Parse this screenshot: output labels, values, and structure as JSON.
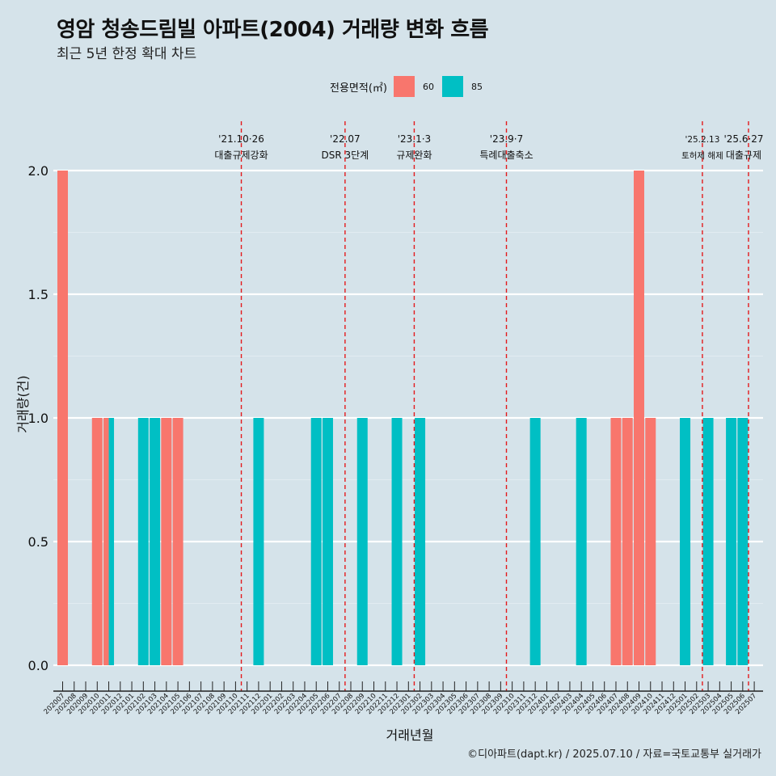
{
  "title": "영암 청송드림빌 아파트(2004) 거래량 변화 흐름",
  "subtitle": "최근 5년 한정 확대 차트",
  "legend": {
    "title": "전용면적(㎡)",
    "items": [
      {
        "label": "60",
        "color": "#f8766d"
      },
      {
        "label": "85",
        "color": "#00bfc4"
      }
    ]
  },
  "caption": "©디아파트(dapt.kr) / 2025.07.10 / 자료=국토교통부 실거래가",
  "chart_data": {
    "type": "bar",
    "xlabel": "거래년월",
    "ylabel": "거래량(건)",
    "ylim": [
      0,
      2
    ],
    "yticks": [
      "0.0",
      "0.5",
      "1.0",
      "1.5",
      "2.0"
    ],
    "grid": true,
    "legend_position": "top",
    "categories": [
      "202007",
      "202008",
      "202009",
      "202010",
      "202011",
      "202012",
      "202101",
      "202102",
      "202103",
      "202104",
      "202105",
      "202106",
      "202107",
      "202108",
      "202109",
      "202110",
      "202111",
      "202112",
      "202201",
      "202202",
      "202203",
      "202204",
      "202205",
      "202206",
      "202207",
      "202208",
      "202209",
      "202210",
      "202211",
      "202212",
      "202301",
      "202302",
      "202303",
      "202304",
      "202305",
      "202306",
      "202307",
      "202308",
      "202309",
      "202310",
      "202311",
      "202312",
      "202401",
      "202402",
      "202403",
      "202404",
      "202405",
      "202406",
      "202407",
      "202408",
      "202409",
      "202410",
      "202411",
      "202412",
      "202501",
      "202502",
      "202503",
      "202504",
      "202505",
      "202506",
      "202507"
    ],
    "bars": [
      {
        "x": "202007",
        "series": "60",
        "value": 2
      },
      {
        "x": "202010",
        "series": "60",
        "value": 1
      },
      {
        "x": "202011",
        "series": "60",
        "value": 1
      },
      {
        "x": "202011",
        "series": "85",
        "value": 1
      },
      {
        "x": "202102",
        "series": "85",
        "value": 1
      },
      {
        "x": "202103",
        "series": "85",
        "value": 1
      },
      {
        "x": "202104",
        "series": "60",
        "value": 1
      },
      {
        "x": "202105",
        "series": "60",
        "value": 1
      },
      {
        "x": "202112",
        "series": "85",
        "value": 1
      },
      {
        "x": "202205",
        "series": "85",
        "value": 1
      },
      {
        "x": "202206",
        "series": "85",
        "value": 1
      },
      {
        "x": "202209",
        "series": "85",
        "value": 1
      },
      {
        "x": "202212",
        "series": "85",
        "value": 1
      },
      {
        "x": "202302",
        "series": "85",
        "value": 1
      },
      {
        "x": "202312",
        "series": "85",
        "value": 1
      },
      {
        "x": "202404",
        "series": "85",
        "value": 1
      },
      {
        "x": "202407",
        "series": "60",
        "value": 1
      },
      {
        "x": "202408",
        "series": "60",
        "value": 1
      },
      {
        "x": "202409",
        "series": "60",
        "value": 2
      },
      {
        "x": "202410",
        "series": "60",
        "value": 1
      },
      {
        "x": "202501",
        "series": "85",
        "value": 1
      },
      {
        "x": "202503",
        "series": "85",
        "value": 1
      },
      {
        "x": "202505",
        "series": "85",
        "value": 1
      },
      {
        "x": "202506",
        "series": "85",
        "value": 1
      }
    ],
    "annotations": [
      {
        "date": "'21.10·26",
        "label": "대출규제강화",
        "x": "202110"
      },
      {
        "date": "'22.07",
        "label": "DSR 3단계",
        "x": "202207"
      },
      {
        "date": "'23.1·3",
        "label": "규제완화",
        "x": "202301"
      },
      {
        "date": "'23.9·7",
        "label": "특례대출축소",
        "x": "202309"
      },
      {
        "date": "'25.2.13",
        "label": "토허제 해제",
        "x": "202502"
      },
      {
        "date": "'25.6·27",
        "label": "대출규제",
        "x": "202506"
      }
    ]
  }
}
